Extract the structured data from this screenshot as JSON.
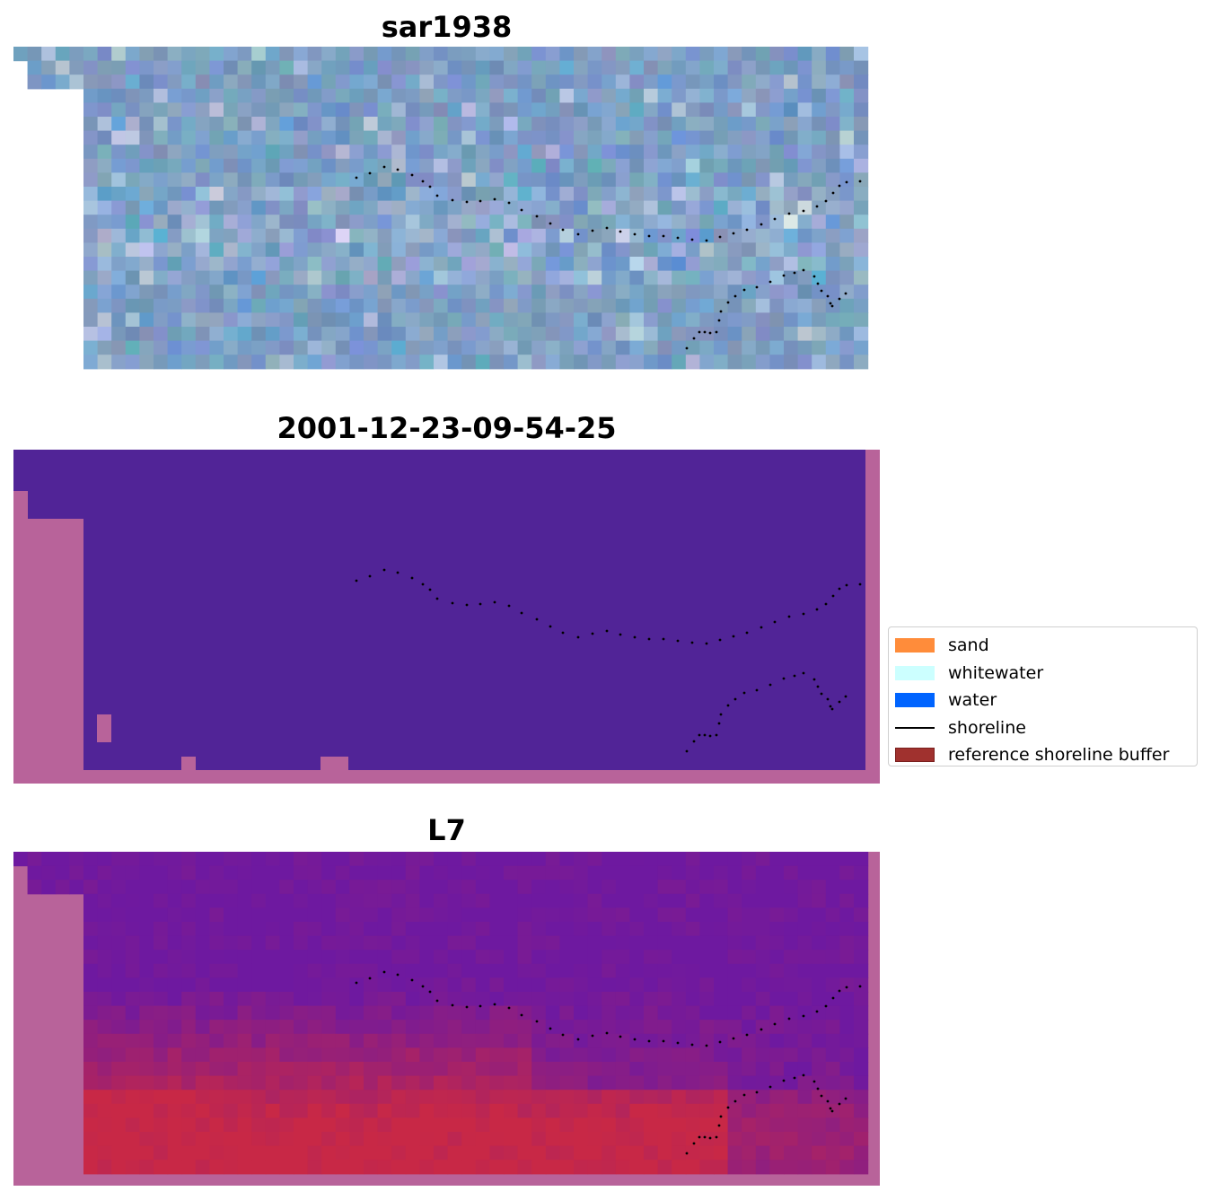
{
  "panels": [
    {
      "title": "sar1938",
      "style": "rgb"
    },
    {
      "title": "2001-12-23-09-54-25",
      "style": "classified"
    },
    {
      "title": "L7",
      "style": "ndwi"
    }
  ],
  "legend": {
    "items": [
      {
        "label": "sand",
        "color": "#ff8c3a",
        "kind": "patch"
      },
      {
        "label": "whitewater",
        "color": "#ccffff",
        "kind": "patch"
      },
      {
        "label": "water",
        "color": "#0064ff",
        "kind": "patch"
      },
      {
        "label": "shoreline",
        "color": "#000000",
        "kind": "line"
      },
      {
        "label": "reference shoreline buffer",
        "color": "#a0312e",
        "kind": "patch"
      }
    ]
  },
  "colors": {
    "no_data": "#b8639a",
    "class_background": "#512497",
    "shoreline_dots": "#000000"
  }
}
